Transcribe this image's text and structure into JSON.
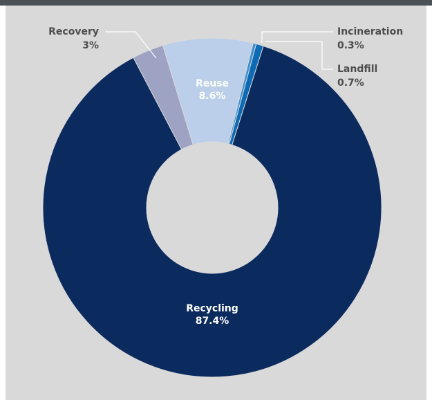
{
  "chart_data": {
    "type": "donut",
    "categories": [
      "Incineration",
      "Landfill",
      "Recycling",
      "Recovery",
      "Reuse"
    ],
    "values": [
      0.3,
      0.7,
      87.4,
      3,
      8.6
    ],
    "value_labels": [
      "0.3%",
      "0.7%",
      "87.4%",
      "3%",
      "8.6%"
    ],
    "colors": [
      "#3d8fd1",
      "#0d6ab5",
      "#0b2a5e",
      "#9ea2c3",
      "#bbcfea"
    ]
  }
}
